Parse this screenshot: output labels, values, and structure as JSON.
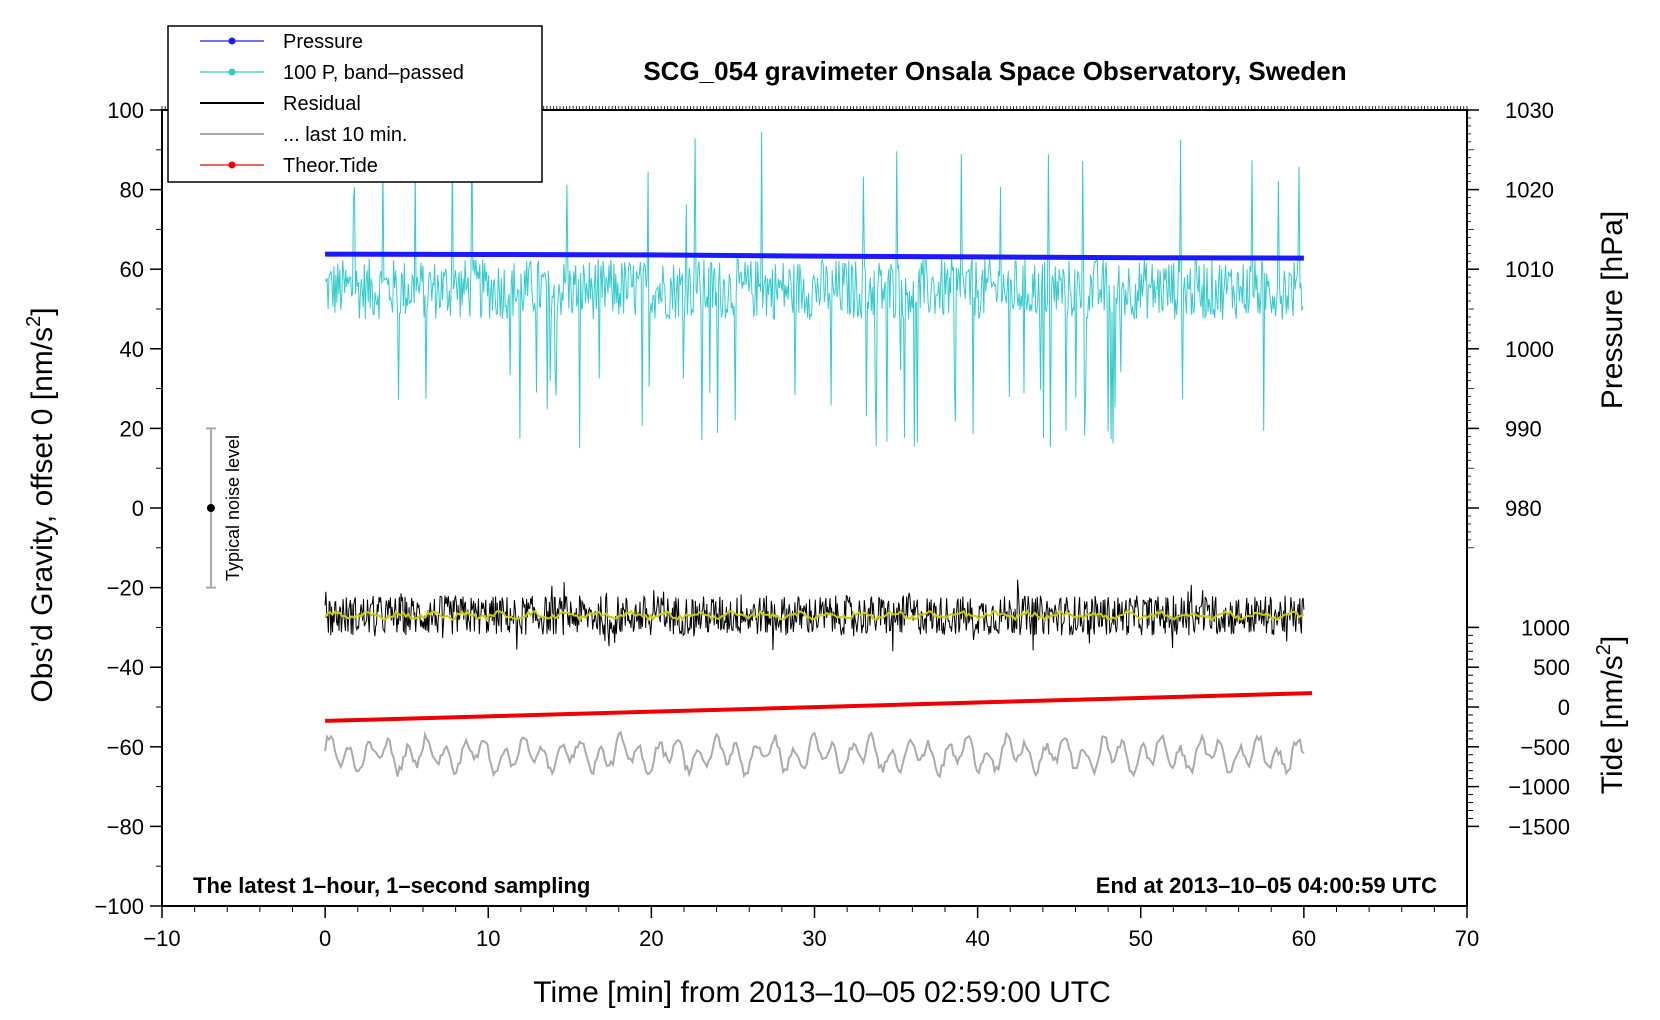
{
  "chart_data": {
    "type": "line",
    "title": "SCG_054 gravimeter Onsala Space Observatory, Sweden",
    "xlabel": "Time [min] from 2013–10–05 02:59:00 UTC",
    "ylabel_left": "Obs’d Gravity, offset 0 [nm/s²]",
    "ylabel_left_main": "Obs’d Gravity, offset 0 [nm/s",
    "ylabel_left_sup": "2",
    "ylabel_left_end": "]",
    "ylabel_right_pressure": "Pressure [hPa]",
    "ylabel_right_tide": "Tide [nm/s²]",
    "ylabel_right_tide_main": "Tide [nm/s",
    "ylabel_right_tide_sup": "2",
    "ylabel_right_tide_end": "]",
    "xlim": [
      -10,
      70
    ],
    "ylim_left": [
      -100,
      100
    ],
    "xticks": [
      -10,
      0,
      10,
      20,
      30,
      40,
      50,
      60,
      70
    ],
    "xtick_labels": [
      "−10",
      "0",
      "10",
      "20",
      "30",
      "40",
      "50",
      "60",
      "70"
    ],
    "yticks_left": [
      -100,
      -80,
      -60,
      -40,
      -20,
      0,
      20,
      40,
      60,
      80,
      100
    ],
    "ytick_labels_left": [
      "−100",
      "−80",
      "−60",
      "−40",
      "−20",
      "0",
      "20",
      "40",
      "60",
      "80",
      "100"
    ],
    "pressure_axis": {
      "ticks": [
        980,
        990,
        1000,
        1010,
        1020,
        1030
      ],
      "labels": [
        "980",
        "990",
        "1000",
        "1010",
        "1020",
        "1030"
      ],
      "gravity_equiv_at_1000hPa": 40,
      "gravity_per_hPa": 2
    },
    "tide_axis": {
      "ticks": [
        -1500,
        -1000,
        -500,
        0,
        500,
        1000
      ],
      "labels": [
        "−1500",
        "−1000",
        "−500",
        "0",
        "500",
        "1000"
      ],
      "gravity_at_0": -50,
      "gravity_per_unit": 0.02
    },
    "legend": [
      {
        "label": "Pressure",
        "color": "#1a1aff",
        "marker": true
      },
      {
        "label": "100 P, band–passed",
        "color": "#33cccc",
        "marker": true
      },
      {
        "label": "Residual",
        "color": "#000000",
        "marker": false
      },
      {
        "label": "... last 10 min.",
        "color": "#aaaaaa",
        "marker": false
      },
      {
        "label": "Theor.Tide",
        "color": "#ee0000",
        "marker": true
      }
    ],
    "series": [
      {
        "name": "Pressure",
        "color": "#1a1aff",
        "description": "approx. 1011.5 hPa at t=0 decreasing to approx. 1010.4 hPa at t=60",
        "x": [
          0,
          10,
          20,
          30,
          40,
          50,
          60
        ],
        "gravity_equiv": [
          63.8,
          63.7,
          63.6,
          63.3,
          63.1,
          62.9,
          62.8
        ]
      },
      {
        "name": "100 P, band–passed",
        "color": "#33cccc",
        "center": 55,
        "noise_amplitude": 14,
        "x_range": [
          0,
          60
        ]
      },
      {
        "name": "Residual",
        "color": "#000000",
        "center": -27,
        "noise_amplitude": 5,
        "x_range": [
          0,
          60
        ]
      },
      {
        "name": "Residual smoothed",
        "color": "#cccc00",
        "center": -27,
        "x_range": [
          0,
          60
        ]
      },
      {
        "name": "... last 10 min.",
        "color": "#aaaaaa",
        "center": -62,
        "noise_amplitude": 5,
        "x_range": [
          0,
          60
        ]
      },
      {
        "name": "Theor.Tide",
        "color": "#ee0000",
        "x": [
          0,
          60.5
        ],
        "gravity_equiv": [
          -53.5,
          -46.5
        ]
      }
    ],
    "noise_bar": {
      "label": "Typical noise level",
      "x": -7,
      "ymin": -20,
      "ymax": 20,
      "center": 0
    },
    "annotation_left": "The latest 1–hour, 1–second sampling",
    "annotation_right": "End at 2013–10–05 04:00:59 UTC"
  }
}
